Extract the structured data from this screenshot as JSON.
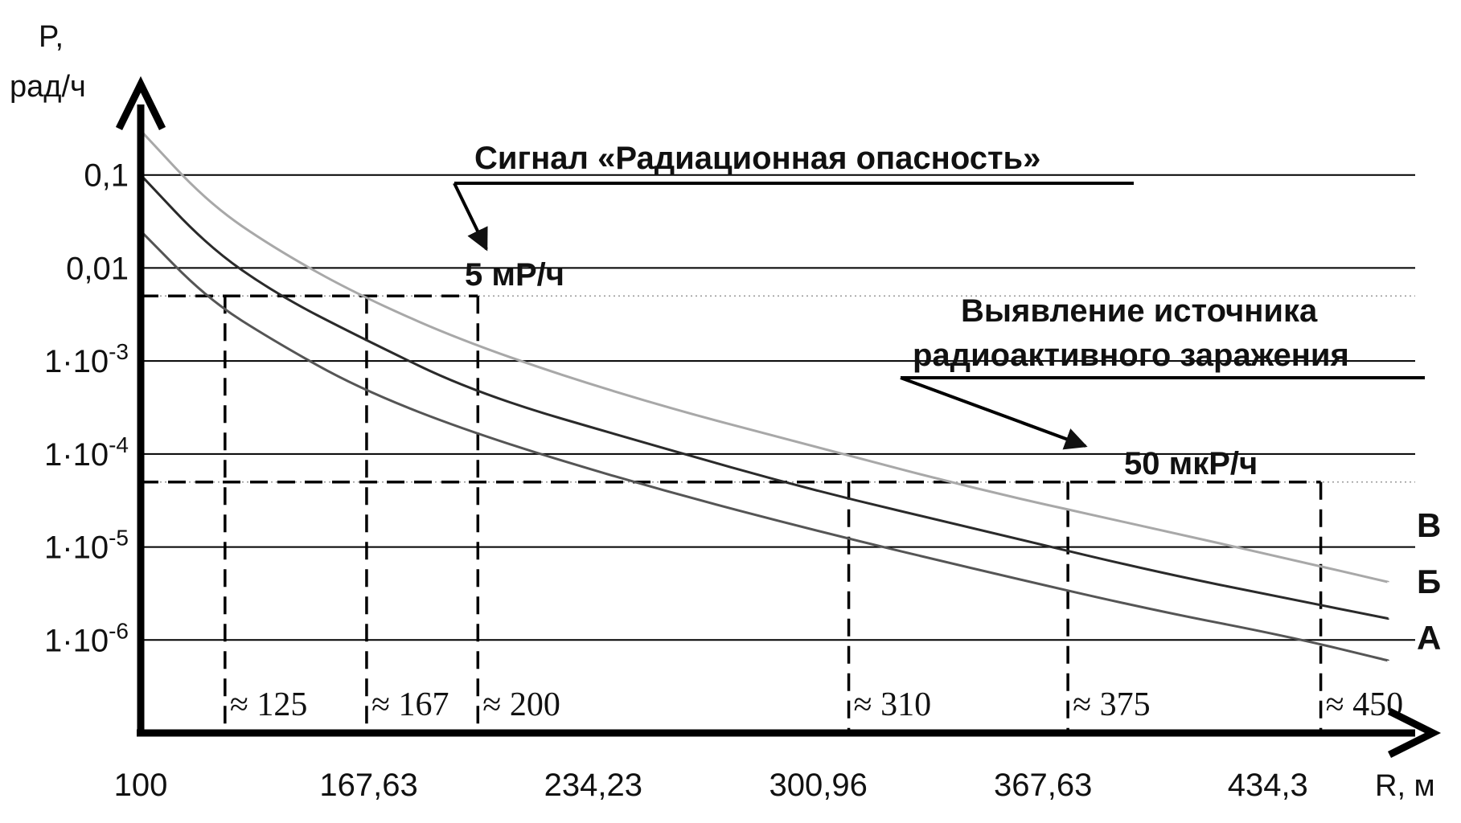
{
  "chart_data": {
    "type": "line",
    "ylabel_line1": "P,",
    "ylabel_line2": "рад/ч",
    "xlabel": "R, м",
    "y_scale": "log",
    "ylim": [
      1e-07,
      1
    ],
    "xlim": [
      100,
      478
    ],
    "y_ticks": [
      {
        "value": 0.1,
        "mantissa": "0,1",
        "exp": ""
      },
      {
        "value": 0.01,
        "mantissa": "0,01",
        "exp": ""
      },
      {
        "value": 0.001,
        "mantissa": "1·10",
        "exp": "-3"
      },
      {
        "value": 0.0001,
        "mantissa": "1·10",
        "exp": "-4"
      },
      {
        "value": 1e-05,
        "mantissa": "1·10",
        "exp": "-5"
      },
      {
        "value": 1e-06,
        "mantissa": "1·10",
        "exp": "-6"
      }
    ],
    "x_ticks": [
      {
        "value": 100,
        "label": "100"
      },
      {
        "value": 167.63,
        "label": "167,63"
      },
      {
        "value": 234.23,
        "label": "234,23"
      },
      {
        "value": 300.96,
        "label": "300,96"
      },
      {
        "value": 367.63,
        "label": "367,63"
      },
      {
        "value": 434.3,
        "label": "434,3"
      }
    ],
    "series": [
      {
        "name": "В",
        "color": "#a8a8a8",
        "x": [
          100,
          120,
          140,
          165,
          200,
          250,
          300,
          350,
          400,
          440,
          470
        ],
        "y": [
          0.3,
          0.05,
          0.016,
          0.005,
          0.0014,
          0.00036,
          0.00012,
          4e-05,
          1.6e-05,
          7.5e-06,
          4.2e-06
        ]
      },
      {
        "name": "Б",
        "color": "#2a2a2a",
        "x": [
          100,
          120,
          140,
          165,
          200,
          250,
          300,
          350,
          400,
          440,
          470
        ],
        "y": [
          0.1,
          0.017,
          0.0053,
          0.0018,
          0.00044,
          0.00013,
          4e-05,
          1.5e-05,
          5.5e-06,
          2.8e-06,
          1.7e-06
        ]
      },
      {
        "name": "А",
        "color": "#555555",
        "x": [
          100,
          120,
          140,
          165,
          200,
          250,
          300,
          350,
          400,
          440,
          470
        ],
        "y": [
          0.025,
          0.0046,
          0.0016,
          0.0005,
          0.00016,
          4.5e-05,
          1.5e-05,
          5.5e-06,
          2.1e-06,
          1.1e-06,
          6e-07
        ]
      }
    ],
    "thresholds": [
      {
        "value": 0.005,
        "label": "5 мР/ч"
      },
      {
        "value": 5e-05,
        "label": "50 мкР/ч"
      }
    ],
    "threshold_markers": [
      {
        "x": 125,
        "level": 0.005,
        "label": "≈ 125"
      },
      {
        "x": 167,
        "level": 0.005,
        "label": "≈ 167"
      },
      {
        "x": 200,
        "level": 0.005,
        "label": "≈ 200"
      },
      {
        "x": 310,
        "level": 5e-05,
        "label": "≈ 310"
      },
      {
        "x": 375,
        "level": 5e-05,
        "label": "≈ 375"
      },
      {
        "x": 450,
        "level": 5e-05,
        "label": "≈ 450"
      }
    ],
    "annotations": [
      {
        "text": "Сигнал «Радиационная опасность»",
        "points_to": "5 мР/ч"
      },
      {
        "text_line1": "Выявление источника",
        "text_line2": "радиоактивного заражения",
        "points_to": "50 мкР/ч"
      }
    ]
  }
}
